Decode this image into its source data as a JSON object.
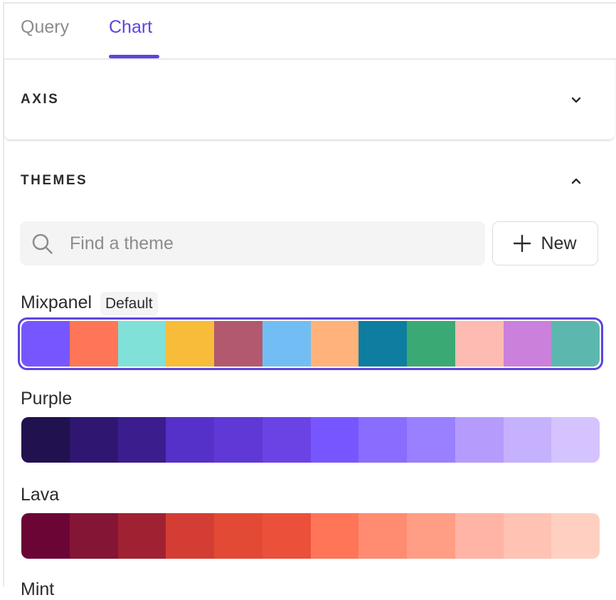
{
  "tabs": [
    {
      "label": "Query",
      "active": false
    },
    {
      "label": "Chart",
      "active": true
    }
  ],
  "accent_color": "#5b45e0",
  "sections": {
    "axis": {
      "title": "AXIS",
      "expanded": false
    },
    "themes": {
      "title": "THEMES",
      "expanded": true
    }
  },
  "search": {
    "placeholder": "Find a theme",
    "value": ""
  },
  "new_button": {
    "label": "New"
  },
  "themes": [
    {
      "name": "Mixpanel",
      "badge": "Default",
      "selected": true,
      "colors": [
        "#7856ff",
        "#ff7557",
        "#80e1d9",
        "#f8bc3b",
        "#b2596e",
        "#72bef4",
        "#ffb27a",
        "#0d7ea0",
        "#3ba974",
        "#febbb2",
        "#cb80dc",
        "#5cb7af"
      ]
    },
    {
      "name": "Purple",
      "colors": [
        "#22114f",
        "#2f1670",
        "#3b1d8d",
        "#5530c9",
        "#5f38d6",
        "#6b43e4",
        "#7856ff",
        "#8a6cff",
        "#9a7fff",
        "#b59cfc",
        "#c6b1fe",
        "#d5c3ff"
      ]
    },
    {
      "name": "Lava",
      "colors": [
        "#6b0536",
        "#841535",
        "#a02232",
        "#d43d33",
        "#e34a36",
        "#eb513a",
        "#ff7557",
        "#ff8b71",
        "#ff9e85",
        "#ffb4a6",
        "#ffc2b3",
        "#ffd0c2"
      ]
    },
    {
      "name": "Mint"
    }
  ]
}
